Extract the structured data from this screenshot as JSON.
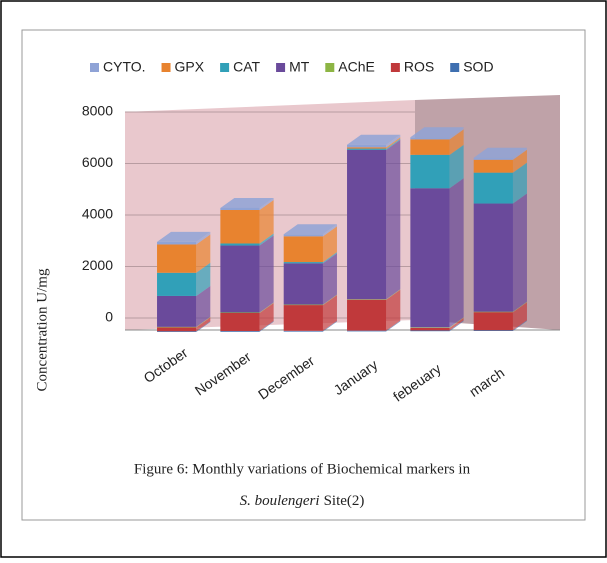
{
  "chart_data": {
    "type": "bar",
    "stacked": true,
    "categories": [
      "October",
      "November",
      "December",
      "January",
      "febeuary",
      "march"
    ],
    "series": [
      {
        "name": "CYTO.",
        "color": "#8fa3d6",
        "values": [
          100,
          80,
          80,
          100,
          80,
          80
        ]
      },
      {
        "name": "GPX",
        "color": "#e8832f",
        "values": [
          1100,
          1300,
          1000,
          50,
          600,
          500
        ]
      },
      {
        "name": "CAT",
        "color": "#31a0b8",
        "values": [
          900,
          80,
          50,
          50,
          1300,
          1200
        ]
      },
      {
        "name": "MT",
        "color": "#6a4a9b",
        "values": [
          1200,
          2600,
          1600,
          5800,
          5400,
          4200
        ]
      },
      {
        "name": "AChE",
        "color": "#8db544",
        "values": [
          20,
          20,
          20,
          20,
          20,
          20
        ]
      },
      {
        "name": "ROS",
        "color": "#c0393b",
        "values": [
          150,
          700,
          1000,
          1200,
          100,
          700
        ]
      },
      {
        "name": "SOD",
        "color": "#3e6fb0",
        "values": [
          30,
          30,
          30,
          30,
          30,
          30
        ]
      }
    ],
    "ylabel": "Concentration U/mg",
    "ylim": [
      0,
      8000
    ],
    "yticks": [
      0,
      2000,
      4000,
      6000,
      8000
    ],
    "grid": true,
    "legend": "top",
    "caption": {
      "line1": "Figure 6: Monthly variations of Biochemical markers in",
      "species": "S. boulengeri",
      "site": "Site(2)"
    }
  }
}
